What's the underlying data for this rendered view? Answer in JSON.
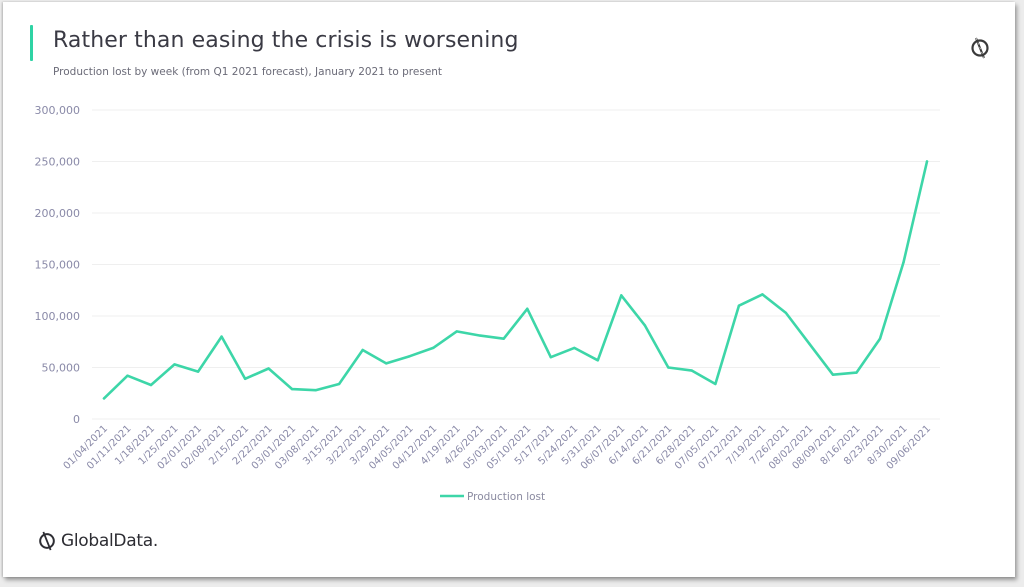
{
  "header": {
    "title": "Rather than easing the crisis is worsening",
    "subtitle": "Production lost by week (from Q1 2021 forecast), January 2021  to present"
  },
  "branding": {
    "name": "GlobalData.",
    "logo_icon": "globaldata-logo-icon"
  },
  "colors": {
    "accent": "#2ed3a4",
    "line": "#3dd6a8",
    "grid": "#efefef",
    "tick_text": "#8a8aa8"
  },
  "chart_data": {
    "type": "line",
    "title": "Rather than easing the crisis is worsening",
    "subtitle": "Production lost by week (from Q1 2021 forecast), January 2021  to present",
    "xlabel": "",
    "ylabel": "",
    "ylim": [
      0,
      300000
    ],
    "yticks": [
      0,
      50000,
      100000,
      150000,
      200000,
      250000,
      300000
    ],
    "ytick_labels": [
      "0",
      "50,000",
      "100,000",
      "150,000",
      "200,000",
      "250,000",
      "300,000"
    ],
    "grid": true,
    "legend": {
      "position": "bottom-center",
      "entries": [
        "Production lost"
      ]
    },
    "categories": [
      "01/04/2021",
      "01/11/2021",
      "1/18/2021",
      "1/25/2021",
      "02/01/2021",
      "02/08/2021",
      "2/15/2021",
      "2/22/2021",
      "03/01/2021",
      "03/08/2021",
      "3/15/2021",
      "3/22/2021",
      "3/29/2021",
      "04/05/2021",
      "04/12/2021",
      "4/19/2021",
      "4/26/2021",
      "05/03/2021",
      "05/10/2021",
      "5/17/2021",
      "5/24/2021",
      "5/31/2021",
      "06/07/2021",
      "6/14/2021",
      "6/21/2021",
      "6/28/2021",
      "07/05/2021",
      "07/12/2021",
      "7/19/2021",
      "7/26/2021",
      "08/02/2021",
      "08/09/2021",
      "8/16/2021",
      "8/23/2021",
      "8/30/2021",
      "09/06/2021"
    ],
    "series": [
      {
        "name": "Production lost",
        "values": [
          20000,
          42000,
          33000,
          53000,
          46000,
          80000,
          39000,
          49000,
          29000,
          28000,
          34000,
          67000,
          54000,
          61000,
          69000,
          85000,
          81000,
          78000,
          107000,
          60000,
          69000,
          57000,
          120000,
          91000,
          50000,
          47000,
          34000,
          110000,
          121000,
          103000,
          73000,
          43000,
          45000,
          78000,
          152000,
          250000
        ]
      }
    ]
  }
}
